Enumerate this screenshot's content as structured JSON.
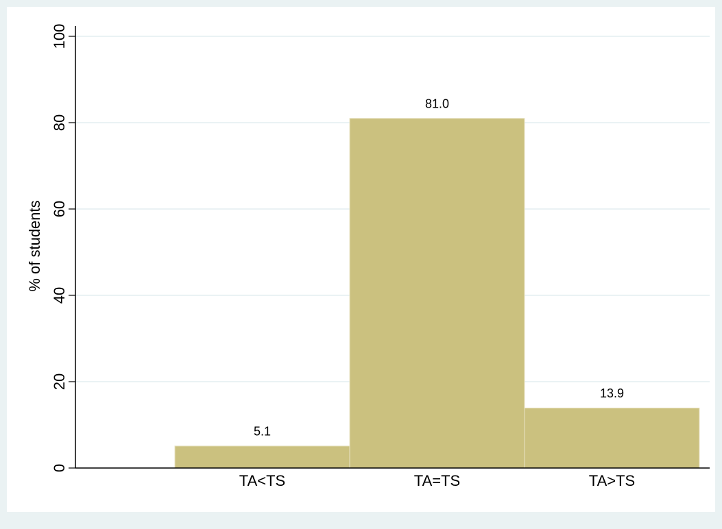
{
  "chart_data": {
    "type": "bar",
    "y_label": "% of students",
    "categories": [
      "TA<TS",
      "TA=TS",
      "TA>TS"
    ],
    "values": [
      5.1,
      81.0,
      13.9
    ],
    "value_labels": [
      "5.1",
      "81.0",
      "13.9"
    ],
    "color": "#cbc17f",
    "ylim": [
      0,
      100
    ],
    "yticks": [
      0,
      20,
      40,
      60,
      80,
      100
    ],
    "grid": true
  }
}
